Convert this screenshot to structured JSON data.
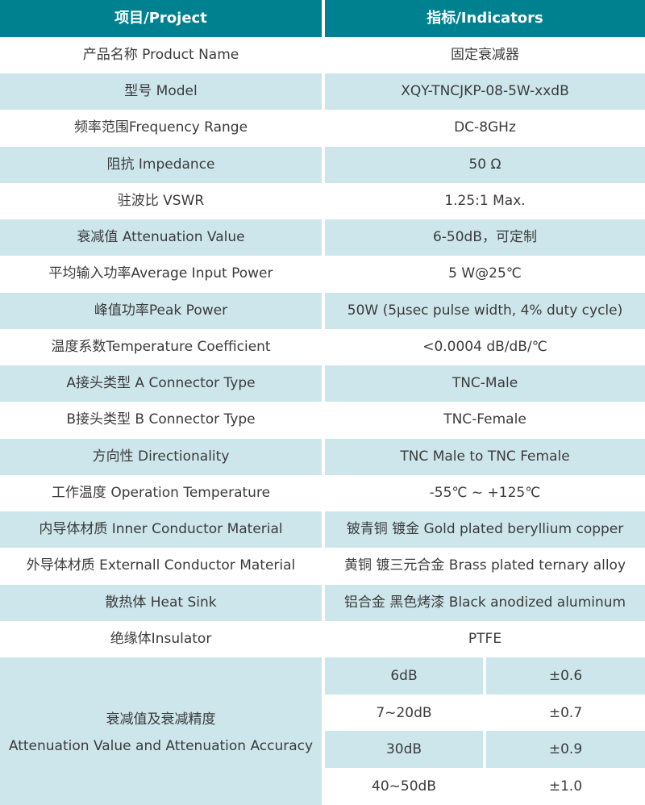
{
  "colors": {
    "header_bg": "#00818F",
    "header_text": "#FFFFFF",
    "row_alt_bg": "#CDE6EC",
    "row_bg": "#FFFFFF",
    "body_text": "#3B3B3B"
  },
  "header": {
    "project": "项目/Project",
    "indicators": "指标/Indicators"
  },
  "rows": [
    {
      "label": "产品名称 Product Name",
      "value": "固定衰减器"
    },
    {
      "label": "型号 Model",
      "value": "XQY-TNCJKP-08-5W-xxdB"
    },
    {
      "label": "频率范围Frequency Range",
      "value": "DC-8GHz"
    },
    {
      "label": "阻抗 Impedance",
      "value": "50 Ω"
    },
    {
      "label": "驻波比 VSWR",
      "value": "1.25:1 Max."
    },
    {
      "label": "衰减值 Attenuation Value",
      "value": "6-50dB，可定制"
    },
    {
      "label": "平均输入功率Average Input Power",
      "value": "5 W@25℃"
    },
    {
      "label": "峰值功率Peak Power",
      "value": "50W (5μsec pulse width, 4% duty cycle)"
    },
    {
      "label": "温度系数Temperature Coefficient",
      "value": "<0.0004 dB/dB/℃"
    },
    {
      "label": "A接头类型 A Connector Type",
      "value": "TNC-Male"
    },
    {
      "label": "B接头类型 B Connector Type",
      "value": "TNC-Female"
    },
    {
      "label": "方向性 Directionality",
      "value": "TNC Male to TNC Female"
    },
    {
      "label": "工作温度 Operation Temperature",
      "value": "-55℃ ~ +125℃"
    },
    {
      "label": "内导体材质 Inner Conductor Material",
      "value": "铍青铜 镀金 Gold plated beryllium copper"
    },
    {
      "label": "外导体材质 Externall Conductor Material",
      "value": "黄铜 镀三元合金 Brass plated ternary alloy"
    },
    {
      "label": "散热体 Heat Sink",
      "value": "铝合金 黑色烤漆 Black anodized aluminum"
    },
    {
      "label": "绝缘体Insulator",
      "value": "PTFE"
    }
  ],
  "attenuation_accuracy": {
    "label_cn": "衰减值及衰减精度",
    "label_en": "Attenuation Value and Attenuation Accuracy",
    "rows": [
      {
        "value": "6dB",
        "accuracy": "±0.6"
      },
      {
        "value": "7~20dB",
        "accuracy": "±0.7"
      },
      {
        "value": "30dB",
        "accuracy": "±0.9"
      },
      {
        "value": "40~50dB",
        "accuracy": "±1.0"
      }
    ]
  }
}
